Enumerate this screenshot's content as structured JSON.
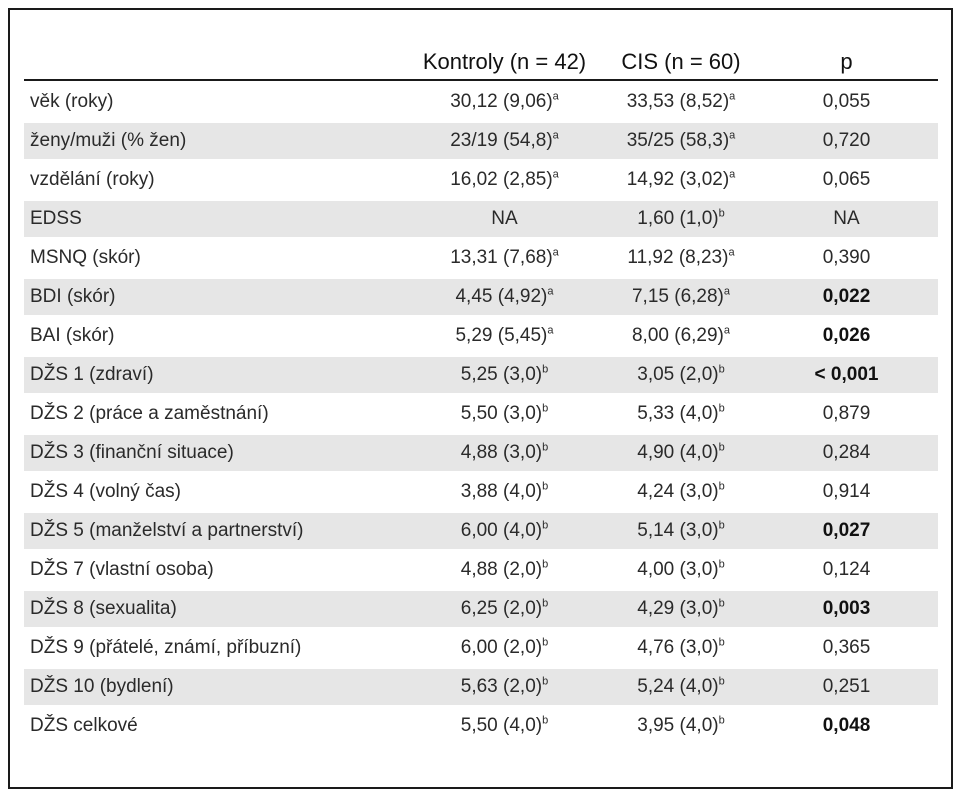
{
  "table": {
    "headers": [
      "",
      "Kontroly (n = 42)",
      "CIS (n = 60)",
      "p"
    ],
    "rows": [
      {
        "label": "věk (roky)",
        "kontroly": "30,12 (9,06)",
        "kontroly_sup": "a",
        "cis": "33,53 (8,52)",
        "cis_sup": "a",
        "p": "0,055",
        "bold": false,
        "shaded": false
      },
      {
        "label": "ženy/muži (% žen)",
        "kontroly": "23/19 (54,8)",
        "kontroly_sup": "a",
        "cis": "35/25 (58,3)",
        "cis_sup": "a",
        "p": "0,720",
        "bold": false,
        "shaded": true
      },
      {
        "label": "vzdělání (roky)",
        "kontroly": "16,02 (2,85)",
        "kontroly_sup": "a",
        "cis": "14,92 (3,02)",
        "cis_sup": "a",
        "p": "0,065",
        "bold": false,
        "shaded": false
      },
      {
        "label": "EDSS",
        "kontroly": "NA",
        "kontroly_sup": "",
        "cis": "1,60 (1,0)",
        "cis_sup": "b",
        "p": "NA",
        "bold": false,
        "shaded": true
      },
      {
        "label": "MSNQ (skór)",
        "kontroly": "13,31 (7,68)",
        "kontroly_sup": "a",
        "cis": "11,92 (8,23)",
        "cis_sup": "a",
        "p": "0,390",
        "bold": false,
        "shaded": false
      },
      {
        "label": "BDI (skór)",
        "kontroly": "4,45 (4,92)",
        "kontroly_sup": "a",
        "cis": "7,15 (6,28)",
        "cis_sup": "a",
        "p": "0,022",
        "bold": true,
        "shaded": true
      },
      {
        "label": "BAI (skór)",
        "kontroly": "5,29 (5,45)",
        "kontroly_sup": "a",
        "cis": "8,00 (6,29)",
        "cis_sup": "a",
        "p": "0,026",
        "bold": true,
        "shaded": false
      },
      {
        "label": "DŽS 1 (zdraví)",
        "kontroly": "5,25 (3,0)",
        "kontroly_sup": "b",
        "cis": "3,05 (2,0)",
        "cis_sup": "b",
        "p": "< 0,001",
        "bold": true,
        "shaded": true
      },
      {
        "label": "DŽS 2 (práce a zaměstnání)",
        "kontroly": "5,50 (3,0)",
        "kontroly_sup": "b",
        "cis": "5,33 (4,0)",
        "cis_sup": "b",
        "p": "0,879",
        "bold": false,
        "shaded": false
      },
      {
        "label": "DŽS 3 (finanční situace)",
        "kontroly": "4,88 (3,0)",
        "kontroly_sup": "b",
        "cis": "4,90 (4,0)",
        "cis_sup": "b",
        "p": "0,284",
        "bold": false,
        "shaded": true
      },
      {
        "label": "DŽS 4 (volný čas)",
        "kontroly": "3,88 (4,0)",
        "kontroly_sup": "b",
        "cis": "4,24 (3,0)",
        "cis_sup": "b",
        "p": "0,914",
        "bold": false,
        "shaded": false
      },
      {
        "label": "DŽS 5 (manželství a partnerství)",
        "kontroly": "6,00 (4,0)",
        "kontroly_sup": "b",
        "cis": "5,14 (3,0)",
        "cis_sup": "b",
        "p": "0,027",
        "bold": true,
        "shaded": true
      },
      {
        "label": "DŽS 7 (vlastní osoba)",
        "kontroly": "4,88 (2,0)",
        "kontroly_sup": "b",
        "cis": "4,00 (3,0)",
        "cis_sup": "b",
        "p": "0,124",
        "bold": false,
        "shaded": false
      },
      {
        "label": "DŽS 8 (sexualita)",
        "kontroly": "6,25 (2,0)",
        "kontroly_sup": "b",
        "cis": "4,29 (3,0)",
        "cis_sup": "b",
        "p": "0,003",
        "bold": true,
        "shaded": true
      },
      {
        "label": "DŽS 9 (přátelé, známí, příbuzní)",
        "kontroly": "6,00 (2,0)",
        "kontroly_sup": "b",
        "cis": "4,76 (3,0)",
        "cis_sup": "b",
        "p": "0,365",
        "bold": false,
        "shaded": false
      },
      {
        "label": "DŽS 10 (bydlení)",
        "kontroly": "5,63 (2,0)",
        "kontroly_sup": "b",
        "cis": "5,24 (4,0)",
        "cis_sup": "b",
        "p": "0,251",
        "bold": false,
        "shaded": true
      },
      {
        "label": "DŽS celkové",
        "kontroly": "5,50 (4,0)",
        "kontroly_sup": "b",
        "cis": "3,95 (4,0)",
        "cis_sup": "b",
        "p": "0,048",
        "bold": true,
        "shaded": false
      }
    ]
  }
}
